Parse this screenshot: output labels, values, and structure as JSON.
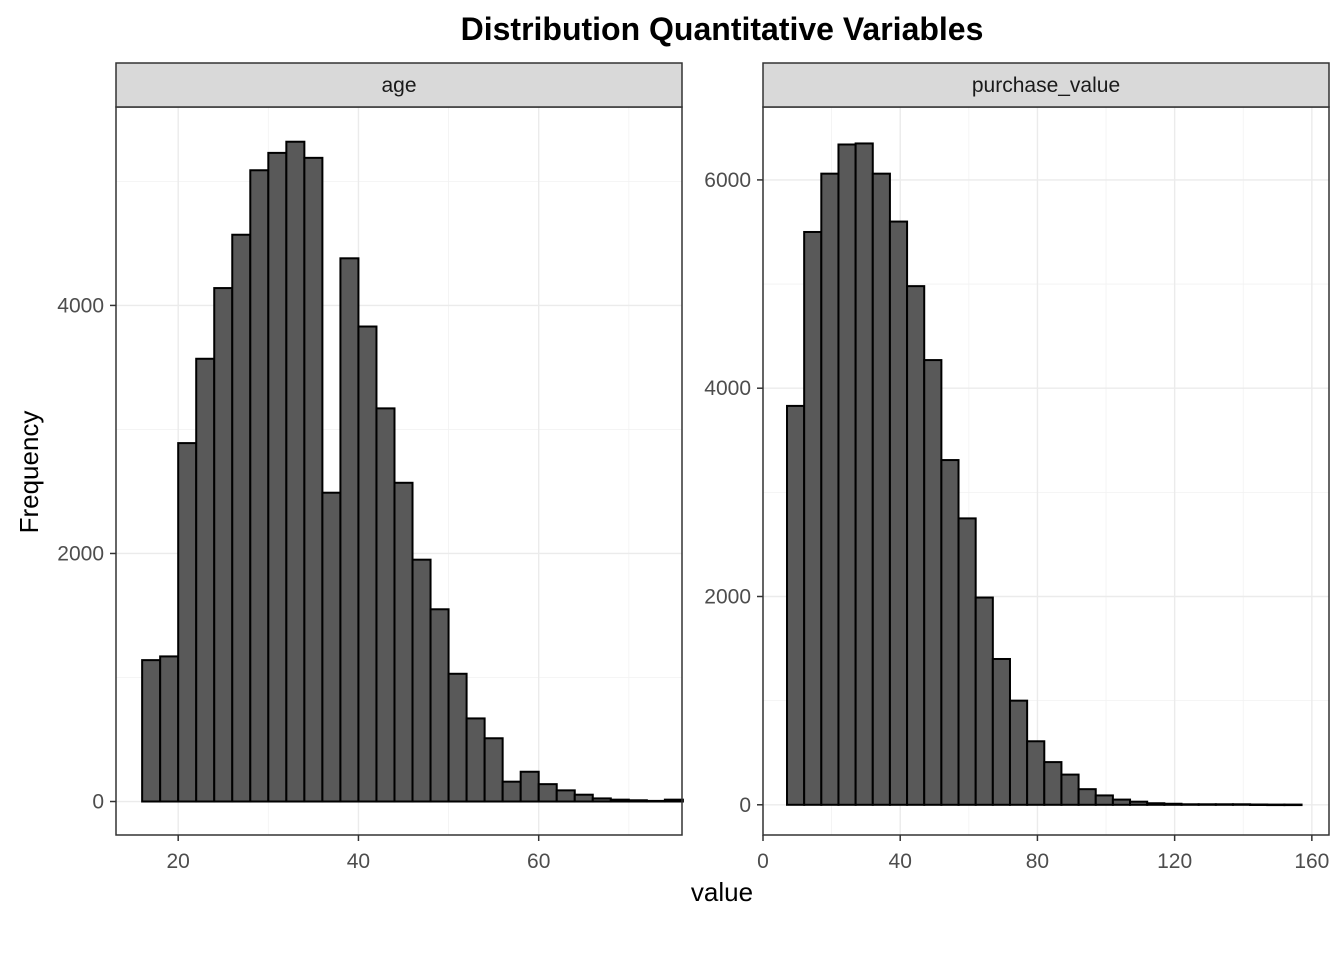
{
  "title": "Distribution Quantitative Variables",
  "xlabel": "value",
  "ylabel": "Frequency",
  "chart_data": [
    {
      "type": "bar",
      "facet": "age",
      "bin_width": 2,
      "x_start": 16,
      "xlim": [
        13.1,
        75.9
      ],
      "ylim": [
        -270,
        5600
      ],
      "xticks": [
        20,
        40,
        60
      ],
      "yticks": [
        0,
        2000,
        4000
      ],
      "values": [
        1140,
        1170,
        2890,
        3570,
        4140,
        4570,
        5090,
        5230,
        5320,
        5190,
        2490,
        4380,
        3830,
        3170,
        2570,
        1950,
        1550,
        1030,
        670,
        510,
        160,
        240,
        140,
        90,
        55,
        25,
        15,
        10,
        5,
        15
      ],
      "grid": true
    },
    {
      "type": "bar",
      "facet": "purchase_value",
      "bin_width": 5,
      "x_start": 7,
      "xlim": [
        0,
        165
      ],
      "ylim": [
        -290,
        6700
      ],
      "xticks": [
        0,
        40,
        80,
        120,
        160
      ],
      "yticks": [
        0,
        2000,
        4000,
        6000
      ],
      "values": [
        3830,
        5500,
        6060,
        6340,
        6350,
        6060,
        5600,
        4980,
        4270,
        3310,
        2750,
        1990,
        1400,
        1000,
        610,
        410,
        290,
        150,
        90,
        50,
        30,
        15,
        10,
        5,
        5,
        5,
        5,
        3,
        2,
        2
      ],
      "grid": true
    }
  ]
}
